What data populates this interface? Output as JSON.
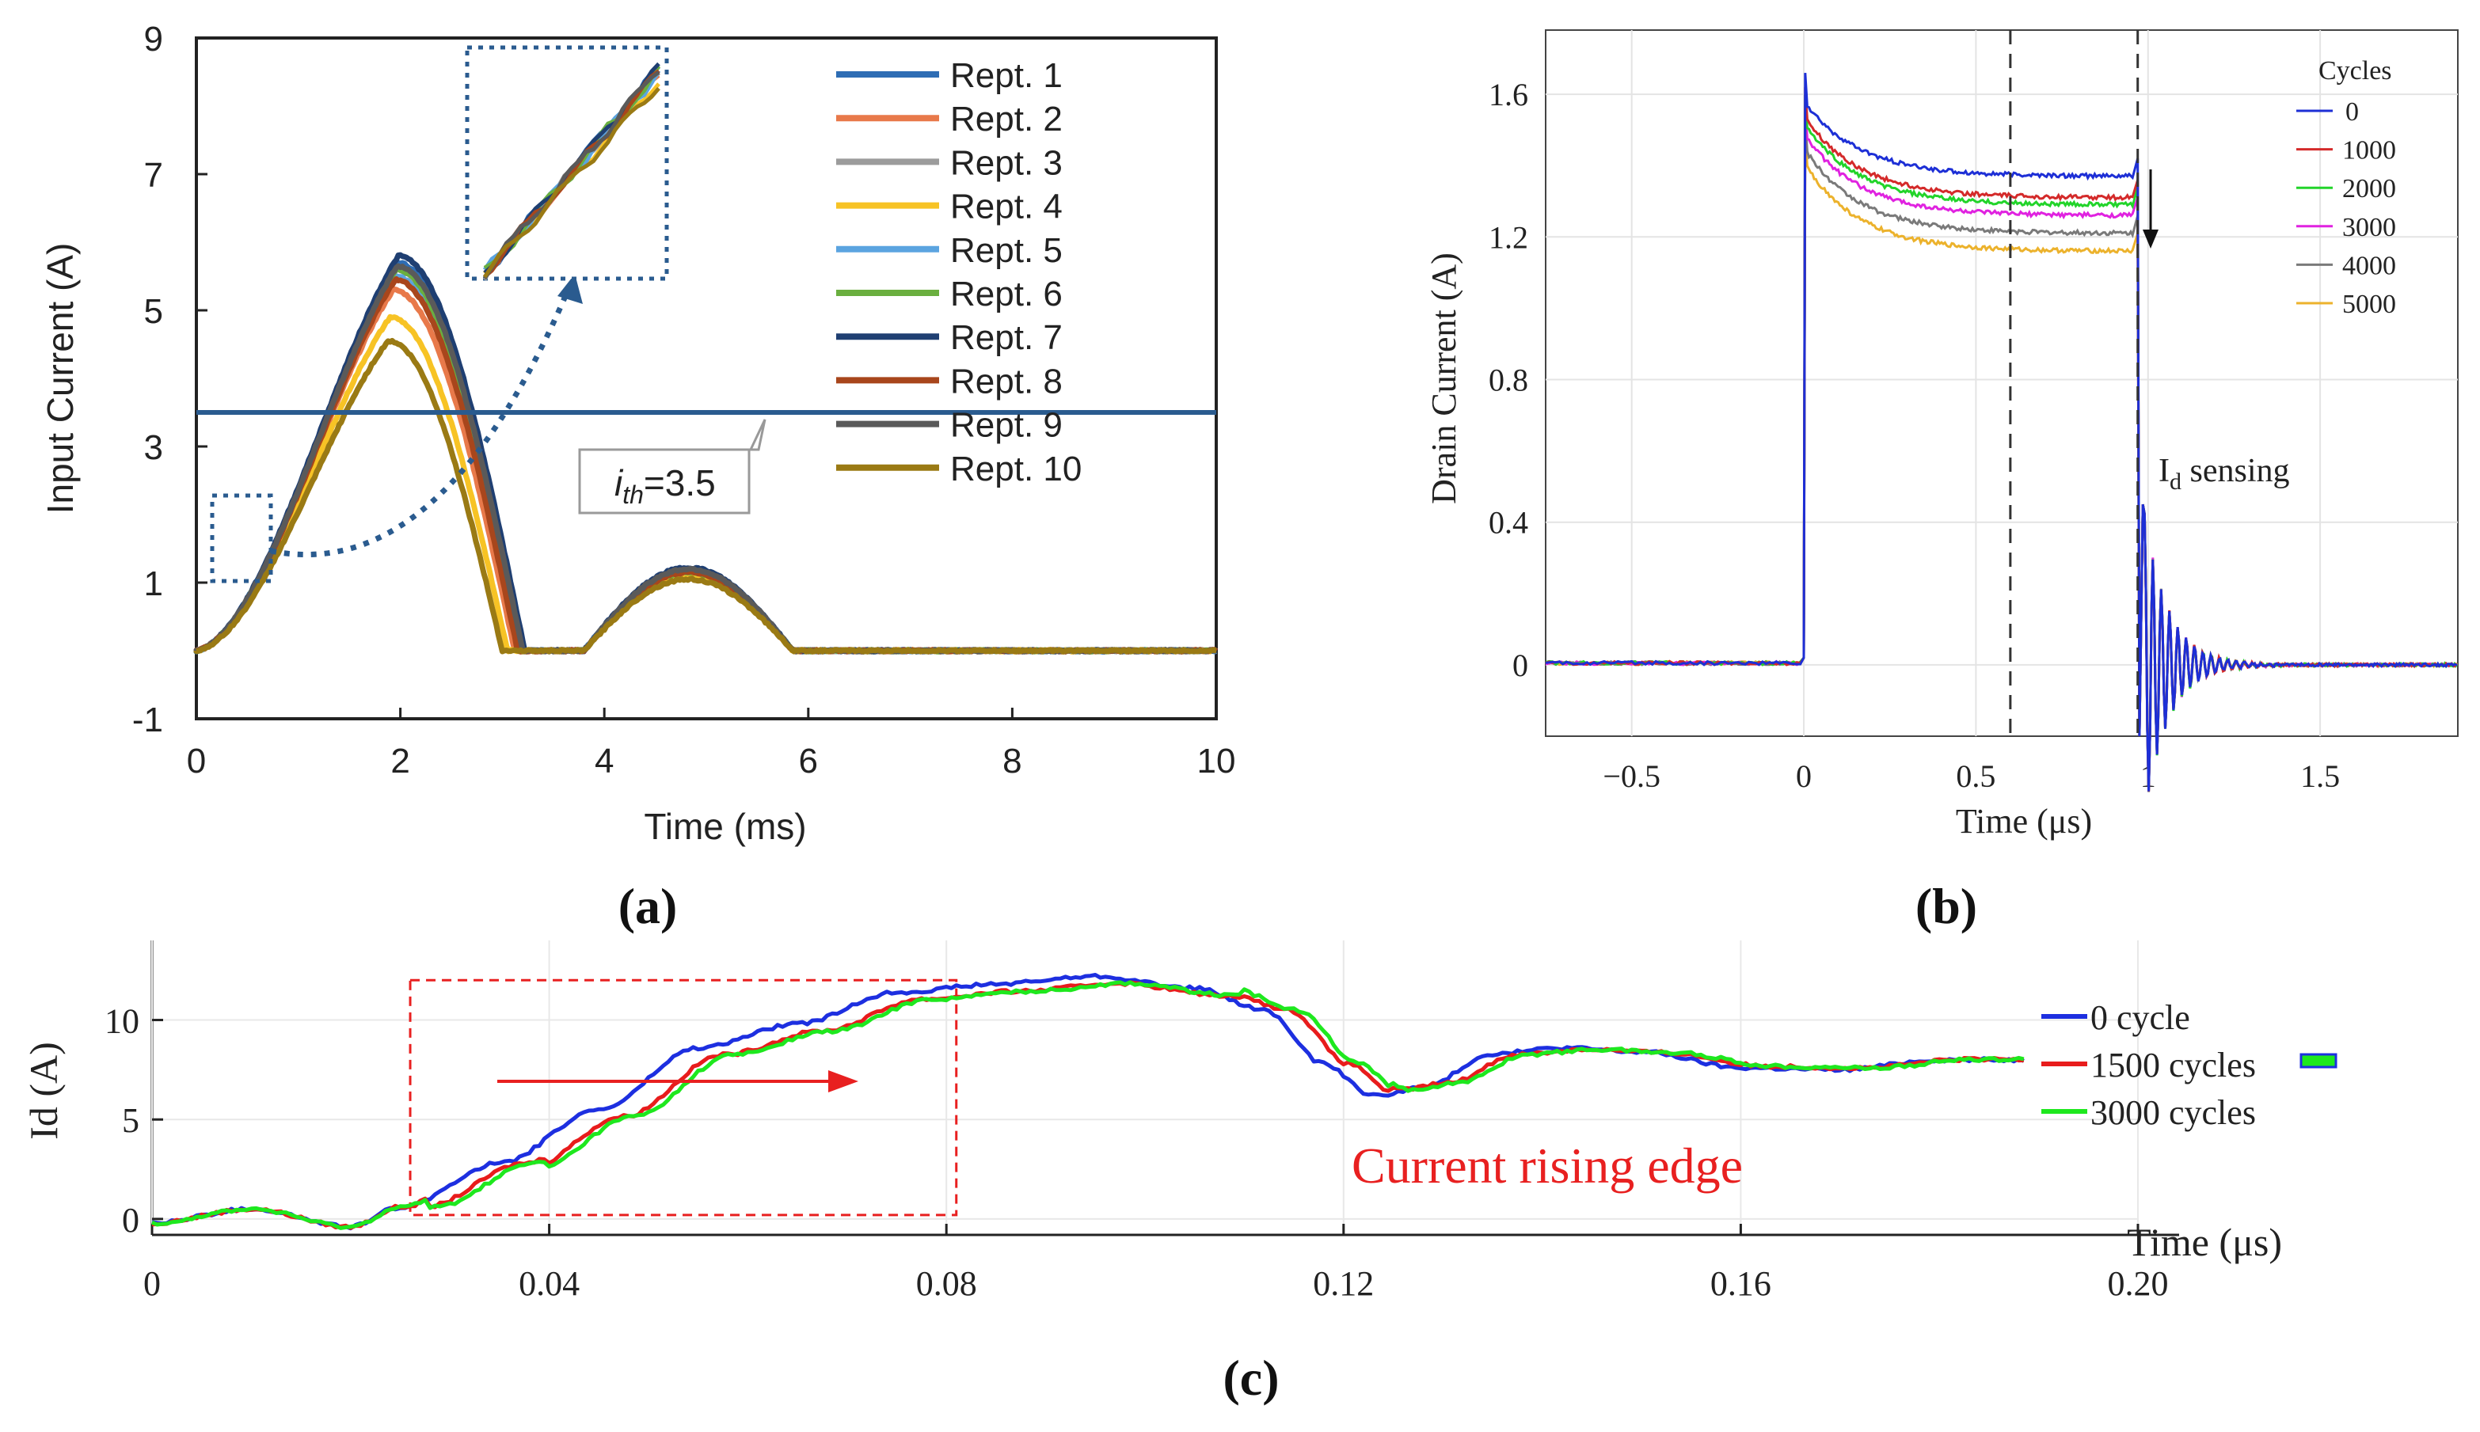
{
  "chart_data": [
    {
      "id": "a",
      "type": "line",
      "panel_label": "(a)",
      "xlabel": "Time (ms)",
      "ylabel": "Input Current (A)",
      "xlim": [
        0,
        10
      ],
      "ylim": [
        -1,
        9
      ],
      "xticks": [
        "0",
        "2",
        "4",
        "6",
        "8",
        "10"
      ],
      "yticks": [
        "-1",
        "1",
        "3",
        "5",
        "7",
        "9"
      ],
      "threshold": {
        "value": 3.5,
        "label_prefix": "i",
        "label_sub": "th",
        "label_value": "=3.5"
      },
      "inset_note": "zoomed view of rising edge (t≈0.1–0.8 ms)",
      "series": [
        {
          "name": "Rept. 1",
          "color": "#2e6db4",
          "peak": 5.7,
          "peak_t": 1.97,
          "end_t": 3.2,
          "hump": 1.2
        },
        {
          "name": "Rept. 2",
          "color": "#e8794a",
          "peak": 5.3,
          "peak_t": 1.93,
          "end_t": 3.12,
          "hump": 1.12
        },
        {
          "name": "Rept. 3",
          "color": "#9c9c9c",
          "peak": 5.6,
          "peak_t": 1.96,
          "end_t": 3.18,
          "hump": 1.2
        },
        {
          "name": "Rept. 4",
          "color": "#f7c325",
          "peak": 4.9,
          "peak_t": 1.9,
          "end_t": 3.05,
          "hump": 1.1
        },
        {
          "name": "Rept. 5",
          "color": "#5ba4e0",
          "peak": 5.5,
          "peak_t": 1.95,
          "end_t": 3.16,
          "hump": 1.18
        },
        {
          "name": "Rept. 6",
          "color": "#6aaf3f",
          "peak": 5.6,
          "peak_t": 1.96,
          "end_t": 3.18,
          "hump": 1.15
        },
        {
          "name": "Rept. 7",
          "color": "#1f3f72",
          "peak": 5.8,
          "peak_t": 1.98,
          "end_t": 3.22,
          "hump": 1.22
        },
        {
          "name": "Rept. 8",
          "color": "#a8461c",
          "peak": 5.45,
          "peak_t": 1.95,
          "end_t": 3.15,
          "hump": 1.15
        },
        {
          "name": "Rept. 9",
          "color": "#5a5a5a",
          "peak": 5.65,
          "peak_t": 1.97,
          "end_t": 3.2,
          "hump": 1.2
        },
        {
          "name": "Rept. 10",
          "color": "#9a7a14",
          "peak": 4.55,
          "peak_t": 1.88,
          "end_t": 3.0,
          "hump": 1.05
        }
      ]
    },
    {
      "id": "b",
      "type": "line",
      "panel_label": "(b)",
      "xlabel": "Time (μs)",
      "ylabel": "Drain Current (A)",
      "xlim": [
        -0.75,
        1.9
      ],
      "ylim": [
        -0.2,
        1.78
      ],
      "xticks": [
        "-0.5",
        "0",
        "0.5",
        "1",
        "1.5"
      ],
      "yticks": [
        "0",
        "0.4",
        "0.8",
        "1.2",
        "1.6"
      ],
      "dashed_lines_x": [
        0.6,
        0.97
      ],
      "legend_title": "Cycles",
      "annotation": {
        "prefix": "I",
        "sub": "d",
        "suffix": " sensing"
      },
      "series": [
        {
          "name": "0",
          "color": "#1d2fd6",
          "start": 1.58,
          "plateau": 1.37
        },
        {
          "name": "1000",
          "color": "#d42a2a",
          "start": 1.54,
          "plateau": 1.31
        },
        {
          "name": "2000",
          "color": "#22d42a",
          "start": 1.52,
          "plateau": 1.29
        },
        {
          "name": "3000",
          "color": "#e022e0",
          "start": 1.49,
          "plateau": 1.26
        },
        {
          "name": "4000",
          "color": "#7a7a7a",
          "start": 1.45,
          "plateau": 1.21
        },
        {
          "name": "5000",
          "color": "#ecb22c",
          "start": 1.41,
          "plateau": 1.16
        }
      ]
    },
    {
      "id": "c",
      "type": "line",
      "panel_label": "(c)",
      "xlabel": "Time (μs)",
      "ylabel": "Id (A)",
      "xlim": [
        0,
        0.2
      ],
      "ylim": [
        -0.8,
        14
      ],
      "xticks": [
        "0",
        "0.04",
        "0.08",
        "0.12",
        "0.16",
        "0.20"
      ],
      "yticks": [
        "0",
        "5",
        "10"
      ],
      "annotation": "Current rising edge",
      "highlight_box_x": [
        0.026,
        0.081
      ],
      "highlight_box_y": [
        0.2,
        12
      ],
      "series": [
        {
          "name": "0 cycle",
          "color": "#1d2fe0",
          "shift": 0.0
        },
        {
          "name": "1500 cycles",
          "color": "#e81c1c",
          "shift": 0.0025
        },
        {
          "name": "3000 cycles",
          "color": "#1ee81e",
          "shift": 0.0035
        }
      ]
    }
  ]
}
